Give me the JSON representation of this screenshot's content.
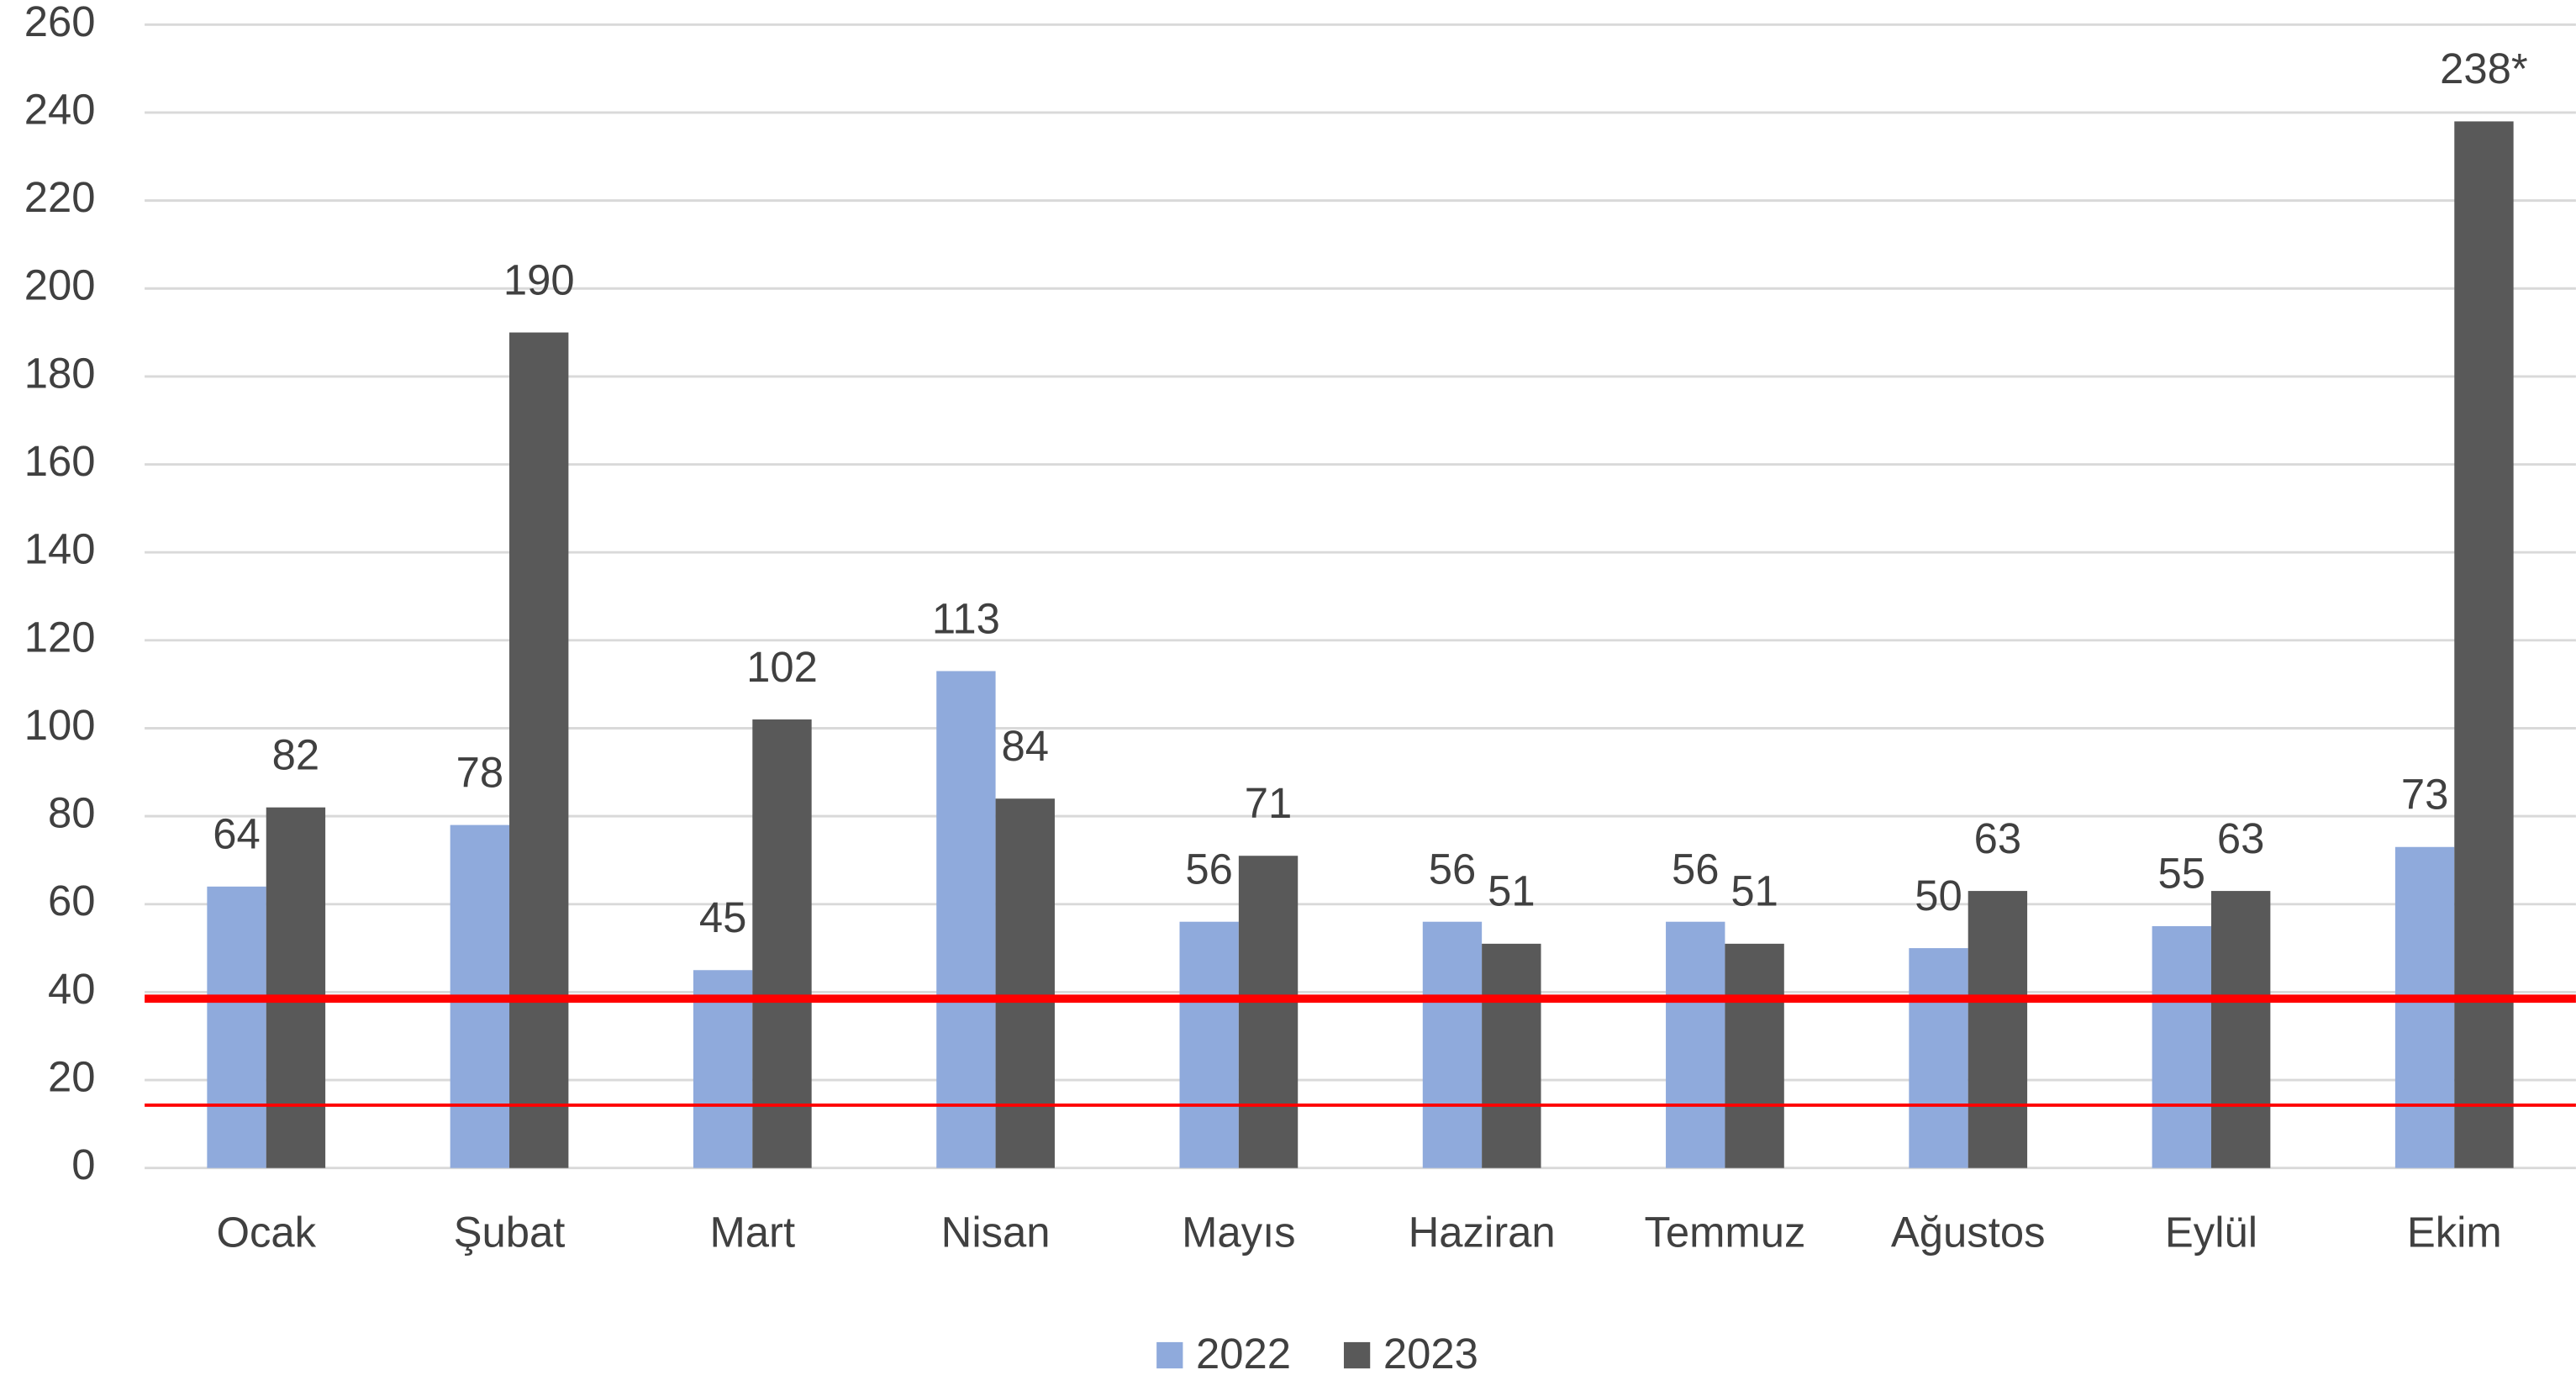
{
  "chart_data": {
    "type": "bar",
    "categories": [
      "Ocak",
      "Şubat",
      "Mart",
      "Nisan",
      "Mayıs",
      "Haziran",
      "Temmuz",
      "Ağustos",
      "Eylül",
      "Ekim"
    ],
    "series": [
      {
        "name": "2022",
        "color": "#8faadc",
        "values": [
          64,
          78,
          45,
          113,
          56,
          56,
          56,
          50,
          55,
          73
        ]
      },
      {
        "name": "2023",
        "color": "#595959",
        "values": [
          82,
          190,
          102,
          84,
          71,
          51,
          51,
          63,
          63,
          238
        ],
        "value_labels": [
          "82",
          "190",
          "102",
          "84",
          "71",
          "51",
          "51",
          "63",
          "63",
          "238*"
        ]
      }
    ],
    "ylim": [
      0,
      260
    ],
    "yticks": [
      0,
      20,
      40,
      60,
      80,
      100,
      120,
      140,
      160,
      180,
      200,
      220,
      240,
      260
    ],
    "grid": true,
    "legend": "bottom",
    "reference_lines": [
      {
        "value": 38.5,
        "color": "#ff0000"
      },
      {
        "value": 14.3,
        "color": "#ff0000"
      }
    ]
  }
}
